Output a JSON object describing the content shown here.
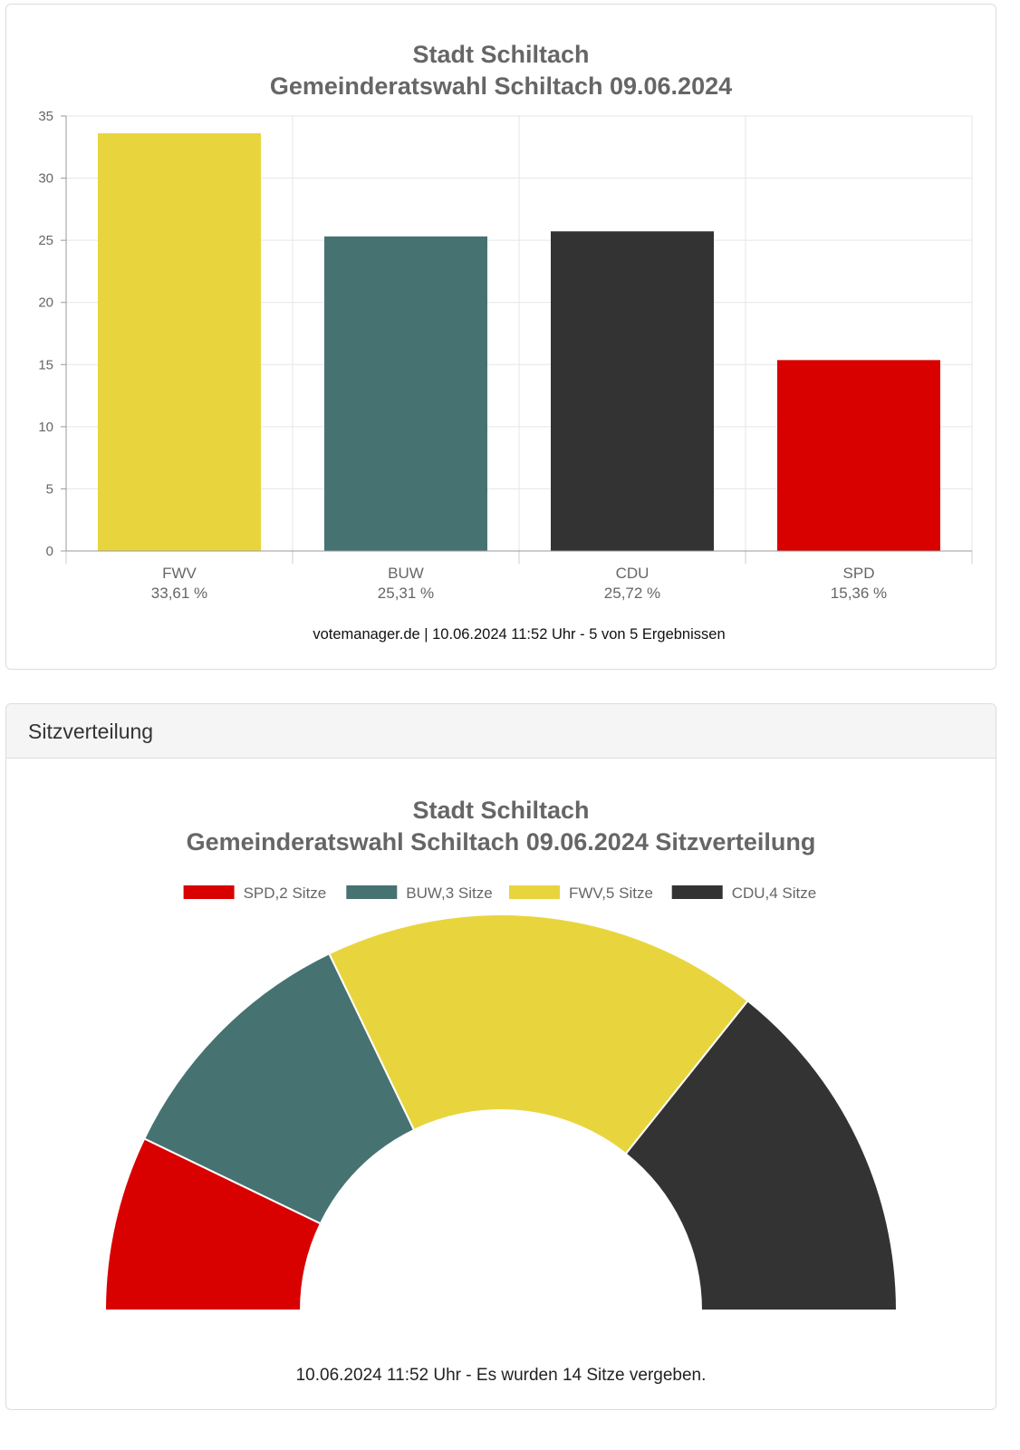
{
  "bar_panel": {
    "title_line1": "Stadt Schiltach",
    "title_line2": "Gemeinderatswahl Schiltach 09.06.2024",
    "footer": "votemanager.de | 10.06.2024 11:52 Uhr - 5 von 5 Ergebnissen"
  },
  "seat_panel": {
    "header": "Sitzverteilung",
    "title_line1": "Stadt Schiltach",
    "title_line2": "Gemeinderatswahl Schiltach 09.06.2024 Sitzverteilung",
    "footer": "10.06.2024 11:52 Uhr - Es wurden 14 Sitze vergeben."
  },
  "chart_data": [
    {
      "type": "bar",
      "title": "Stadt Schiltach / Gemeinderatswahl Schiltach 09.06.2024",
      "categories": [
        "FWV",
        "BUW",
        "CDU",
        "SPD"
      ],
      "value_labels": [
        "33,61 %",
        "25,31 %",
        "25,72 %",
        "15,36 %"
      ],
      "values": [
        33.61,
        25.31,
        25.72,
        15.36
      ],
      "colors": [
        "#e8d53d",
        "#467272",
        "#333333",
        "#d90000"
      ],
      "yticks": [
        0,
        5,
        10,
        15,
        20,
        25,
        30,
        35
      ],
      "ylim": [
        0,
        35
      ],
      "xlabel": "",
      "ylabel": ""
    },
    {
      "type": "pie",
      "variant": "semicircle",
      "title": "Stadt Schiltach / Gemeinderatswahl Schiltach 09.06.2024 Sitzverteilung",
      "categories": [
        "SPD",
        "BUW",
        "FWV",
        "CDU"
      ],
      "legend_labels": [
        "SPD,2 Sitze",
        "BUW,3 Sitze",
        "FWV,5 Sitze",
        "CDU,4 Sitze"
      ],
      "values": [
        2,
        3,
        5,
        4
      ],
      "colors": [
        "#d90000",
        "#467272",
        "#e8d53d",
        "#333333"
      ],
      "legend_position": "top"
    }
  ]
}
